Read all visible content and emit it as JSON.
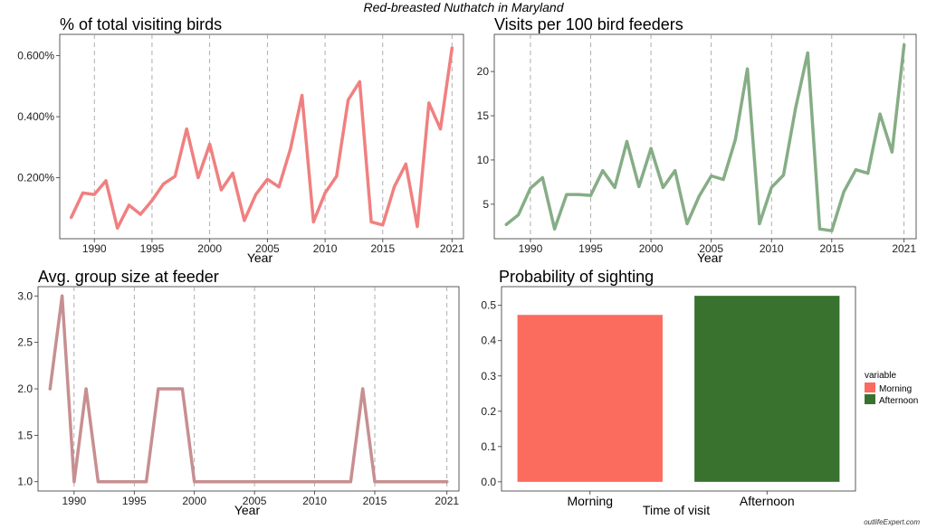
{
  "main_title": "Red-breasted Nuthatch in Maryland",
  "credit": "outlifeExpert.com",
  "chart_data": [
    {
      "type": "line",
      "title": "% of total visiting birds",
      "xlabel": "Year",
      "ylabel": "",
      "color": "#f08080",
      "xticks": [
        1990,
        1995,
        2000,
        2005,
        2010,
        2015,
        2021
      ],
      "yticks": [
        0.2,
        0.4,
        0.6
      ],
      "ytick_labels": [
        "0.200%",
        "0.400%",
        "0.600%"
      ],
      "xlim": [
        1987,
        2022
      ],
      "ylim": [
        0.0,
        0.67
      ],
      "x": [
        1988,
        1989,
        1990,
        1991,
        1992,
        1993,
        1994,
        1995,
        1996,
        1997,
        1998,
        1999,
        2000,
        2001,
        2002,
        2003,
        2004,
        2005,
        2006,
        2007,
        2008,
        2009,
        2010,
        2011,
        2012,
        2013,
        2014,
        2015,
        2016,
        2017,
        2018,
        2019,
        2020,
        2021
      ],
      "y": [
        0.07,
        0.15,
        0.145,
        0.19,
        0.035,
        0.11,
        0.08,
        0.125,
        0.18,
        0.205,
        0.36,
        0.2,
        0.31,
        0.16,
        0.215,
        0.06,
        0.145,
        0.195,
        0.17,
        0.295,
        0.47,
        0.055,
        0.15,
        0.205,
        0.455,
        0.515,
        0.055,
        0.045,
        0.17,
        0.245,
        0.04,
        0.445,
        0.36,
        0.625
      ]
    },
    {
      "type": "line",
      "title": "Visits per 100 bird feeders",
      "xlabel": "Year",
      "ylabel": "",
      "color": "#86ad86",
      "xticks": [
        1990,
        1995,
        2000,
        2005,
        2010,
        2015,
        2021
      ],
      "yticks": [
        5,
        10,
        15,
        20
      ],
      "ytick_labels": [
        "5",
        "10",
        "15",
        "20"
      ],
      "xlim": [
        1987,
        2022
      ],
      "ylim": [
        1.1,
        24.2
      ],
      "x": [
        1988,
        1989,
        1990,
        1991,
        1992,
        1993,
        1994,
        1995,
        1996,
        1997,
        1998,
        1999,
        2000,
        2001,
        2002,
        2003,
        2004,
        2005,
        2006,
        2007,
        2008,
        2009,
        2010,
        2011,
        2012,
        2013,
        2014,
        2015,
        2016,
        2017,
        2018,
        2019,
        2020,
        2021
      ],
      "y": [
        2.7,
        3.8,
        6.8,
        8.0,
        2.2,
        6.1,
        6.1,
        6.0,
        8.8,
        6.9,
        12.1,
        7.0,
        11.3,
        6.9,
        8.8,
        2.8,
        5.9,
        8.2,
        7.8,
        12.3,
        20.3,
        2.8,
        6.9,
        8.3,
        15.9,
        22.1,
        2.2,
        2.0,
        6.4,
        8.9,
        8.5,
        15.2,
        10.9,
        23.0
      ]
    },
    {
      "type": "line",
      "title": "Avg. group size at feeder",
      "xlabel": "Year",
      "ylabel": "",
      "color": "#c78f91",
      "xticks": [
        1990,
        1995,
        2000,
        2005,
        2010,
        2015,
        2021
      ],
      "yticks": [
        1.0,
        1.5,
        2.0,
        2.5,
        3.0
      ],
      "ytick_labels": [
        "1.0",
        "1.5",
        "2.0",
        "2.5",
        "3.0"
      ],
      "xlim": [
        1987,
        2022
      ],
      "ylim": [
        0.9,
        3.1
      ],
      "x": [
        1988,
        1989,
        1990,
        1991,
        1992,
        1993,
        1994,
        1995,
        1996,
        1997,
        1998,
        1999,
        2000,
        2001,
        2002,
        2003,
        2004,
        2005,
        2006,
        2007,
        2008,
        2009,
        2010,
        2011,
        2012,
        2013,
        2014,
        2015,
        2016,
        2017,
        2018,
        2019,
        2020,
        2021
      ],
      "y": [
        2.0,
        3.0,
        1.0,
        2.0,
        1.0,
        1.0,
        1.0,
        1.0,
        1.0,
        2.0,
        2.0,
        2.0,
        1.0,
        1.0,
        1.0,
        1.0,
        1.0,
        1.0,
        1.0,
        1.0,
        1.0,
        1.0,
        1.0,
        1.0,
        1.0,
        1.0,
        2.0,
        1.0,
        1.0,
        1.0,
        1.0,
        1.0,
        1.0,
        1.0
      ]
    },
    {
      "type": "bar",
      "title": "Probability of sighting",
      "xlabel": "Time of visit",
      "ylabel": "",
      "categories": [
        "Morning",
        "Afternoon"
      ],
      "values": [
        0.473,
        0.527
      ],
      "colors": [
        "#fb6b5e",
        "#39722f"
      ],
      "yticks": [
        0.0,
        0.1,
        0.2,
        0.3,
        0.4,
        0.5
      ],
      "ytick_labels": [
        "0.0",
        "0.1",
        "0.2",
        "0.3",
        "0.4",
        "0.5"
      ],
      "ylim": [
        -0.026,
        0.553
      ],
      "legend": {
        "title": "variable",
        "position": "right",
        "entries": [
          {
            "label": "Morning",
            "color": "#fb6b5e"
          },
          {
            "label": "Afternoon",
            "color": "#39722f"
          }
        ]
      }
    }
  ]
}
